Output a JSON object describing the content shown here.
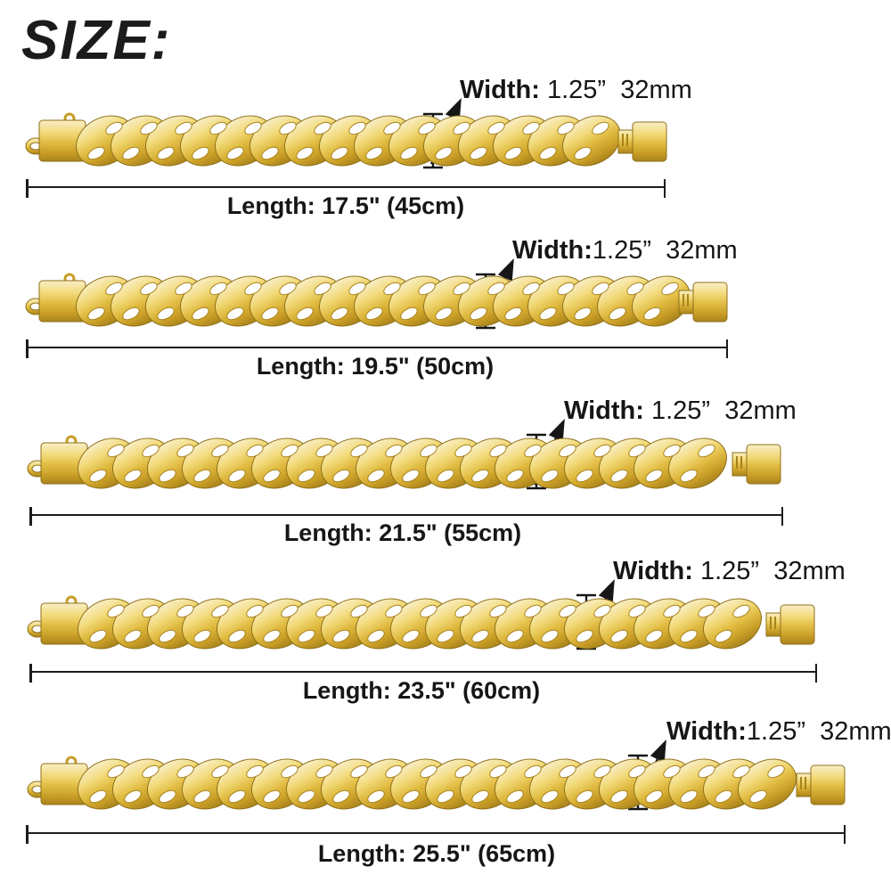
{
  "title": "SIZE:",
  "rows": [
    {
      "width_label": "Width:",
      "width_value": " 1.25”  32mm",
      "length_text": "Length: 17.5\" (45cm)",
      "length_in": "17.5\"",
      "length_cm": "45cm"
    },
    {
      "width_label": "Width:",
      "width_value": "1.25”  32mm",
      "length_text": "Length: 19.5\" (50cm)",
      "length_in": "19.5\"",
      "length_cm": "50cm"
    },
    {
      "width_label": "Width:",
      "width_value": " 1.25”  32mm",
      "length_text": "Length: 21.5\" (55cm)",
      "length_in": "21.5\"",
      "length_cm": "55cm"
    },
    {
      "width_label": "Width:",
      "width_value": " 1.25”  32mm",
      "length_text": "Length: 23.5\" (60cm)",
      "length_in": "23.5\"",
      "length_cm": "60cm"
    },
    {
      "width_label": "Width:",
      "width_value": "1.25”  32mm",
      "length_text": "Length: 25.5\" (65cm)",
      "length_in": "25.5\"",
      "length_cm": "65cm"
    }
  ],
  "chain_width_spec": "1.25” 32mm",
  "colors": {
    "gold_highlight": "#f9eec6",
    "gold_light": "#f2da7a",
    "gold_mid": "#e0bb41",
    "gold_deep": "#c89d26",
    "gold_shadow": "#a8831c",
    "outline": "#8f711b",
    "text": "#161616",
    "background": "#ffffff"
  }
}
